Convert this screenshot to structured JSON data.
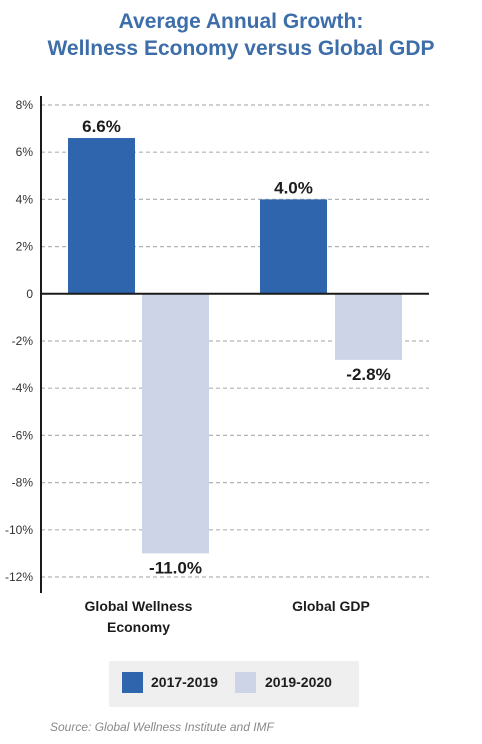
{
  "chart_data": {
    "type": "bar",
    "title": [
      "Average Annual Growth:",
      "Wellness Economy versus Global GDP"
    ],
    "categories": [
      "Global Wellness\nEconomy",
      "Global GDP"
    ],
    "series": [
      {
        "name": "2017-2019",
        "values": [
          6.6,
          4.0
        ],
        "labels": [
          "6.6%",
          "4.0%"
        ],
        "color": "#2f65ad"
      },
      {
        "name": "2019-2020",
        "values": [
          -11.0,
          -2.8
        ],
        "labels": [
          "-11.0%",
          "-2.8%"
        ],
        "color": "#cdd4e8"
      }
    ],
    "ylim": [
      -12,
      8
    ],
    "yticks": [
      8,
      6,
      4,
      2,
      0,
      -2,
      -4,
      -6,
      -8,
      -10,
      -12
    ],
    "ytick_labels": [
      "8%",
      "6%",
      "4%",
      "2%",
      "0",
      "-2%",
      "-4%",
      "-6%",
      "-8%",
      "-10%",
      "-12%"
    ],
    "grid": true,
    "grid_style": "dashed",
    "legend_position": "bottom"
  },
  "source": "Source: Global Wellness Institute and IMF"
}
